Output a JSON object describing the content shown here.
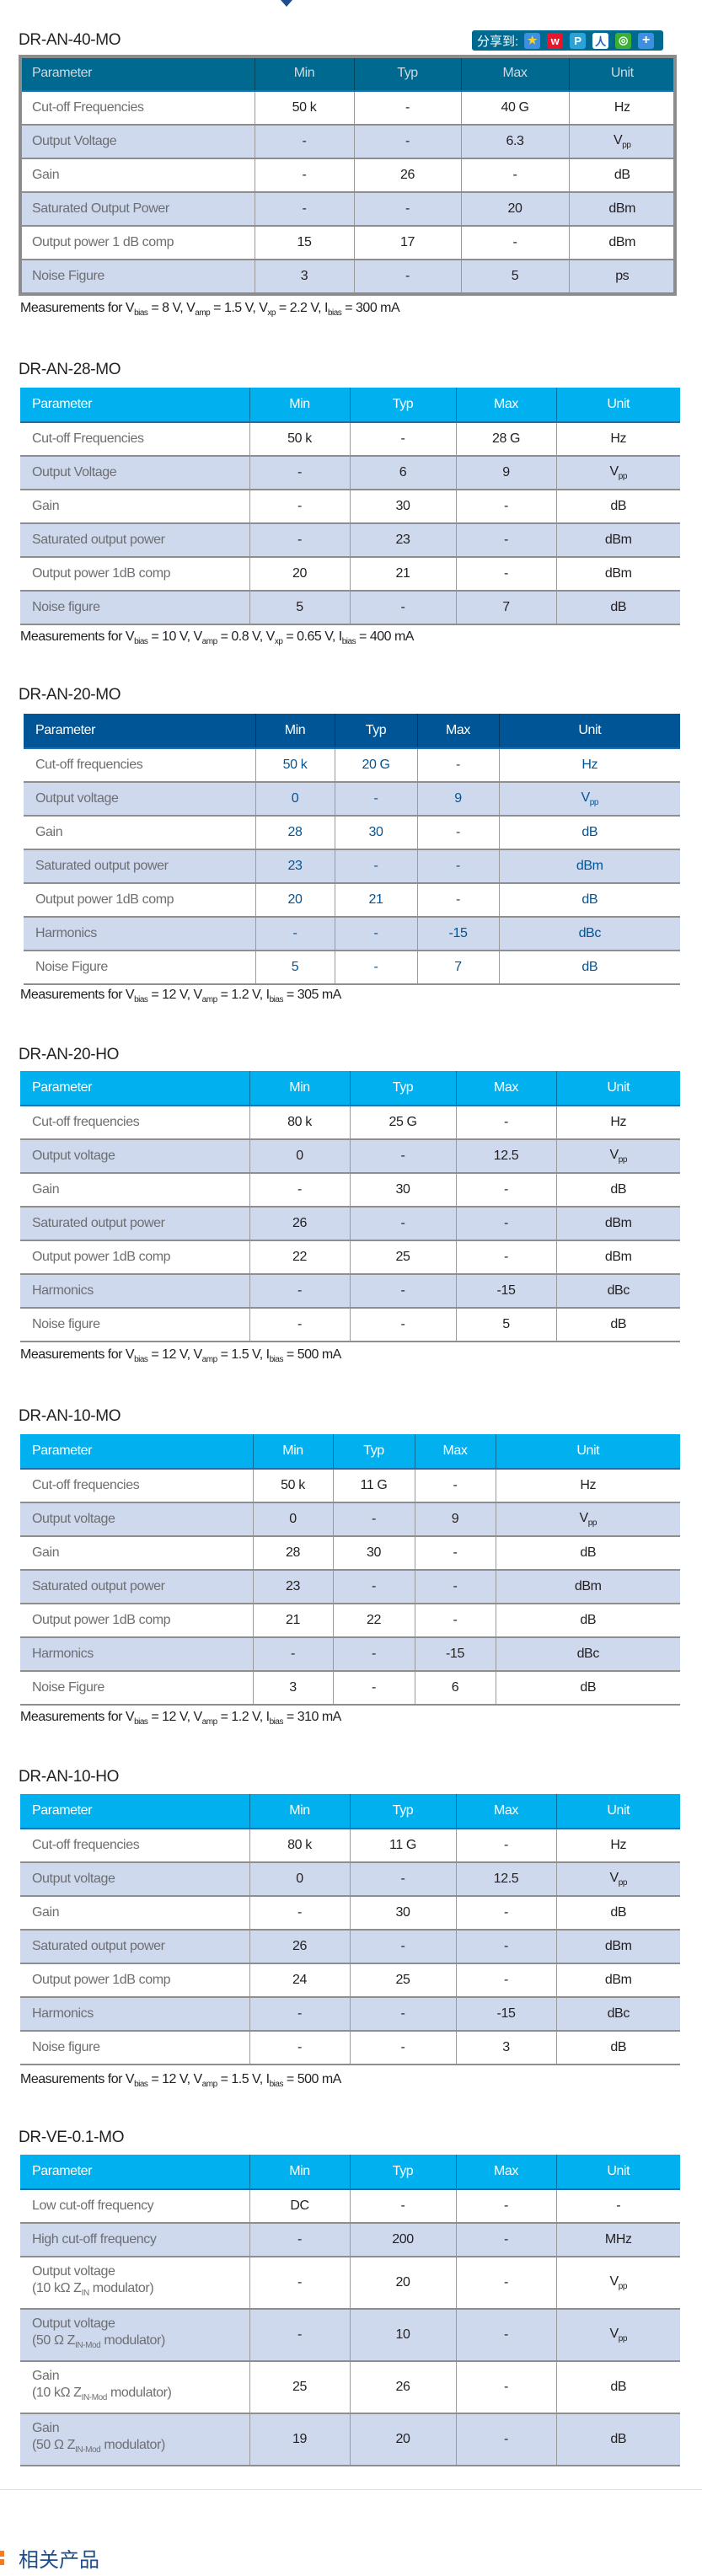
{
  "share": {
    "label": "分享到:",
    "icons": [
      "qzone-icon",
      "weibo-icon",
      "tencent-weibo-icon",
      "renren-icon",
      "wechat-icon",
      "more-plus-icon"
    ]
  },
  "columns": [
    "Parameter",
    "Min",
    "Typ",
    "Max",
    "Unit"
  ],
  "colors": {
    "header_dark_teal": "#006990",
    "header_navy": "#005596",
    "header_cyan": "#00b0ef",
    "row_alt": "#cfd9ee",
    "param_text": "#6d6e71",
    "value_blue": "#005596",
    "related_marker": "#f47b20"
  },
  "tables": [
    {
      "title": "DR-AN-40-MO",
      "header_style": "teal",
      "rows": [
        {
          "param": [
            "Cut-off Frequencies"
          ],
          "min": "50 k",
          "typ": "-",
          "max": "40 G",
          "unit": {
            "main": "Hz"
          }
        },
        {
          "param": [
            "Output Voltage"
          ],
          "min": "-",
          "typ": "-",
          "max": "6.3",
          "unit": {
            "main": "V",
            "sub": "pp"
          }
        },
        {
          "param": [
            "Gain"
          ],
          "min": "-",
          "typ": "26",
          "max": "-",
          "unit": {
            "main": "dB"
          }
        },
        {
          "param": [
            "Saturated Output Power"
          ],
          "min": "-",
          "typ": "-",
          "max": "20",
          "unit": {
            "main": "dBm"
          }
        },
        {
          "param": [
            "Output power 1 dB comp"
          ],
          "min": "15",
          "typ": "17",
          "max": "-",
          "unit": {
            "main": "dBm"
          }
        },
        {
          "param": [
            "Noise Figure"
          ],
          "min": "3",
          "typ": "-",
          "max": "5",
          "unit": {
            "main": "ps"
          }
        }
      ],
      "measurement": [
        {
          "t": "Measurements for V"
        },
        {
          "s": "bias"
        },
        {
          "t": " = 8 V, V"
        },
        {
          "s": "amp"
        },
        {
          "t": " = 1.5 V, V"
        },
        {
          "s": "xp"
        },
        {
          "t": " = 2.2 V, I"
        },
        {
          "s": "bias"
        },
        {
          "t": " = 300 mA"
        }
      ]
    },
    {
      "title": "DR-AN-28-MO",
      "header_style": "cyan",
      "rows": [
        {
          "param": [
            "Cut-off Frequencies"
          ],
          "min": "50 k",
          "typ": "-",
          "max": "28 G",
          "unit": {
            "main": "Hz"
          }
        },
        {
          "param": [
            "Output Voltage"
          ],
          "min": "-",
          "typ": "6",
          "max": "9",
          "unit": {
            "main": "V",
            "sub": "pp"
          }
        },
        {
          "param": [
            "Gain"
          ],
          "min": "-",
          "typ": "30",
          "max": "-",
          "unit": {
            "main": "dB"
          }
        },
        {
          "param": [
            "Saturated output power"
          ],
          "min": "-",
          "typ": "23",
          "max": "-",
          "unit": {
            "main": "dBm"
          }
        },
        {
          "param": [
            "Output power 1dB comp"
          ],
          "min": "20",
          "typ": "21",
          "max": "-",
          "unit": {
            "main": "dBm"
          }
        },
        {
          "param": [
            "Noise figure"
          ],
          "min": "5",
          "typ": "-",
          "max": "7",
          "unit": {
            "main": "dB"
          }
        }
      ],
      "measurement": [
        {
          "t": "Measurements for V"
        },
        {
          "s": "bias"
        },
        {
          "t": " = 10 V, V"
        },
        {
          "s": "amp"
        },
        {
          "t": " = 0.8 V, V"
        },
        {
          "s": "xp"
        },
        {
          "t": " = 0.65 V, I"
        },
        {
          "s": "bias"
        },
        {
          "t": " = 400 mA"
        }
      ]
    },
    {
      "title": "DR-AN-20-MO",
      "header_style": "navy",
      "rows": [
        {
          "param": [
            "Cut-off frequencies"
          ],
          "min": "50 k",
          "typ": "20 G",
          "max": "-",
          "unit": {
            "main": "Hz"
          }
        },
        {
          "param": [
            "Output voltage"
          ],
          "min": "0",
          "typ": "-",
          "max": "9",
          "unit": {
            "main": "V",
            "sub": "pp"
          }
        },
        {
          "param": [
            "Gain"
          ],
          "min": "28",
          "typ": "30",
          "max": "-",
          "unit": {
            "main": "dB"
          }
        },
        {
          "param": [
            "Saturated output power"
          ],
          "min": "23",
          "typ": "-",
          "max": "-",
          "unit": {
            "main": "dBm"
          }
        },
        {
          "param": [
            "Output power 1dB comp"
          ],
          "min": "20",
          "typ": "21",
          "max": "-",
          "unit": {
            "main": "dB"
          }
        },
        {
          "param": [
            "Harmonics"
          ],
          "min": "-",
          "typ": "-",
          "max": "-15",
          "unit": {
            "main": "dBc"
          }
        },
        {
          "param": [
            "Noise Figure"
          ],
          "min": "5",
          "typ": "-",
          "max": "7",
          "unit": {
            "main": "dB"
          }
        }
      ],
      "measurement": [
        {
          "t": "Measurements for V"
        },
        {
          "s": "bias"
        },
        {
          "t": " = 12 V, V"
        },
        {
          "s": "amp"
        },
        {
          "t": " = 1.2 V, I"
        },
        {
          "s": "bias"
        },
        {
          "t": " = 305 mA"
        }
      ]
    },
    {
      "title": "DR-AN-20-HO",
      "header_style": "cyan",
      "rows": [
        {
          "param": [
            "Cut-off frequencies"
          ],
          "min": "80 k",
          "typ": "25 G",
          "max": "-",
          "unit": {
            "main": "Hz"
          }
        },
        {
          "param": [
            "Output voltage"
          ],
          "min": "0",
          "typ": "-",
          "max": "12.5",
          "unit": {
            "main": "V",
            "sub": "pp"
          }
        },
        {
          "param": [
            "Gain"
          ],
          "min": "-",
          "typ": "30",
          "max": "-",
          "unit": {
            "main": "dB"
          }
        },
        {
          "param": [
            "Saturated output power"
          ],
          "min": "26",
          "typ": "-",
          "max": "-",
          "unit": {
            "main": "dBm"
          }
        },
        {
          "param": [
            "Output power 1dB comp"
          ],
          "min": "22",
          "typ": "25",
          "max": "-",
          "unit": {
            "main": "dBm"
          }
        },
        {
          "param": [
            "Harmonics"
          ],
          "min": "-",
          "typ": "-",
          "max": "-15",
          "unit": {
            "main": "dBc"
          }
        },
        {
          "param": [
            "Noise figure"
          ],
          "min": "-",
          "typ": "-",
          "max": "5",
          "unit": {
            "main": "dB"
          }
        }
      ],
      "measurement": [
        {
          "t": "Measurements for V"
        },
        {
          "s": "bias"
        },
        {
          "t": " = 12 V, V"
        },
        {
          "s": "amp"
        },
        {
          "t": " = 1.5 V, I"
        },
        {
          "s": "bias"
        },
        {
          "t": " = 500 mA"
        }
      ]
    },
    {
      "title": "DR-AN-10-MO",
      "header_style": "cyan",
      "rows": [
        {
          "param": [
            "Cut-off frequencies"
          ],
          "min": "50 k",
          "typ": "11 G",
          "max": "-",
          "unit": {
            "main": "Hz"
          }
        },
        {
          "param": [
            "Output voltage"
          ],
          "min": "0",
          "typ": "-",
          "max": "9",
          "unit": {
            "main": "V",
            "sub": "pp"
          }
        },
        {
          "param": [
            "Gain"
          ],
          "min": "28",
          "typ": "30",
          "max": "-",
          "unit": {
            "main": "dB"
          }
        },
        {
          "param": [
            "Saturated output power"
          ],
          "min": "23",
          "typ": "-",
          "max": "-",
          "unit": {
            "main": "dBm"
          }
        },
        {
          "param": [
            "Output power 1dB comp"
          ],
          "min": "21",
          "typ": "22",
          "max": "-",
          "unit": {
            "main": "dB"
          }
        },
        {
          "param": [
            "Harmonics"
          ],
          "min": "-",
          "typ": "-",
          "max": "-15",
          "unit": {
            "main": "dBc"
          }
        },
        {
          "param": [
            "Noise Figure"
          ],
          "min": "3",
          "typ": "-",
          "max": "6",
          "unit": {
            "main": "dB"
          }
        }
      ],
      "measurement": [
        {
          "t": "Measurements for V"
        },
        {
          "s": "bias"
        },
        {
          "t": " = 12 V, V"
        },
        {
          "s": "amp"
        },
        {
          "t": " = 1.2 V, I"
        },
        {
          "s": "bias"
        },
        {
          "t": " = 310 mA"
        }
      ]
    },
    {
      "title": "DR-AN-10-HO",
      "header_style": "cyan",
      "rows": [
        {
          "param": [
            "Cut-off frequencies"
          ],
          "min": "80 k",
          "typ": "11 G",
          "max": "-",
          "unit": {
            "main": "Hz"
          }
        },
        {
          "param": [
            "Output voltage"
          ],
          "min": "0",
          "typ": "-",
          "max": "12.5",
          "unit": {
            "main": "V",
            "sub": "pp"
          }
        },
        {
          "param": [
            "Gain"
          ],
          "min": "-",
          "typ": "30",
          "max": "-",
          "unit": {
            "main": "dB"
          }
        },
        {
          "param": [
            "Saturated output power"
          ],
          "min": "26",
          "typ": "-",
          "max": "-",
          "unit": {
            "main": "dBm"
          }
        },
        {
          "param": [
            "Output power 1dB comp"
          ],
          "min": "24",
          "typ": "25",
          "max": "-",
          "unit": {
            "main": "dBm"
          }
        },
        {
          "param": [
            "Harmonics"
          ],
          "min": "-",
          "typ": "-",
          "max": "-15",
          "unit": {
            "main": "dBc"
          }
        },
        {
          "param": [
            "Noise figure"
          ],
          "min": "-",
          "typ": "-",
          "max": "3",
          "unit": {
            "main": "dB"
          }
        }
      ],
      "measurement": [
        {
          "t": "Measurements for V"
        },
        {
          "s": "bias"
        },
        {
          "t": " = 12 V, V"
        },
        {
          "s": "amp"
        },
        {
          "t": " = 1.5 V, I"
        },
        {
          "s": "bias"
        },
        {
          "t": " = 500 mA"
        }
      ]
    },
    {
      "title": "DR-VE-0.1-MO",
      "header_style": "cyan",
      "rows": [
        {
          "param": [
            "Low cut-off frequency"
          ],
          "min": "DC",
          "typ": "-",
          "max": "-",
          "unit": {
            "main": "-"
          }
        },
        {
          "param": [
            "High cut-off frequency"
          ],
          "min": "-",
          "typ": "200",
          "max": "-",
          "unit": {
            "main": "MHz"
          }
        },
        {
          "param": [
            "Output voltage",
            [
              {
                "t": " (10 kΩ Z"
              },
              {
                "s": "IN"
              },
              {
                "t": " modulator)"
              }
            ]
          ],
          "min": "-",
          "typ": "20",
          "max": "-",
          "unit": {
            "main": "V",
            "sub": "pp"
          }
        },
        {
          "param": [
            "Output voltage",
            [
              {
                "t": " (50 Ω Z"
              },
              {
                "s": "IN-Mod"
              },
              {
                "t": " modulator)"
              }
            ]
          ],
          "min": "-",
          "typ": "10",
          "max": "-",
          "unit": {
            "main": "V",
            "sub": "pp"
          }
        },
        {
          "param": [
            "Gain",
            [
              {
                "t": "(10 kΩ Z"
              },
              {
                "s": "IN-Mod"
              },
              {
                "t": " modulator)"
              }
            ]
          ],
          "min": "25",
          "typ": "26",
          "max": "-",
          "unit": {
            "main": "dB"
          }
        },
        {
          "param": [
            "Gain",
            [
              {
                "t": " (50 Ω Z"
              },
              {
                "s": "IN-Mod"
              },
              {
                "t": " modulator)"
              }
            ]
          ],
          "min": "19",
          "typ": "20",
          "max": "-",
          "unit": {
            "main": "dB"
          }
        }
      ],
      "measurement": []
    }
  ],
  "related": {
    "title": "相关产品"
  }
}
